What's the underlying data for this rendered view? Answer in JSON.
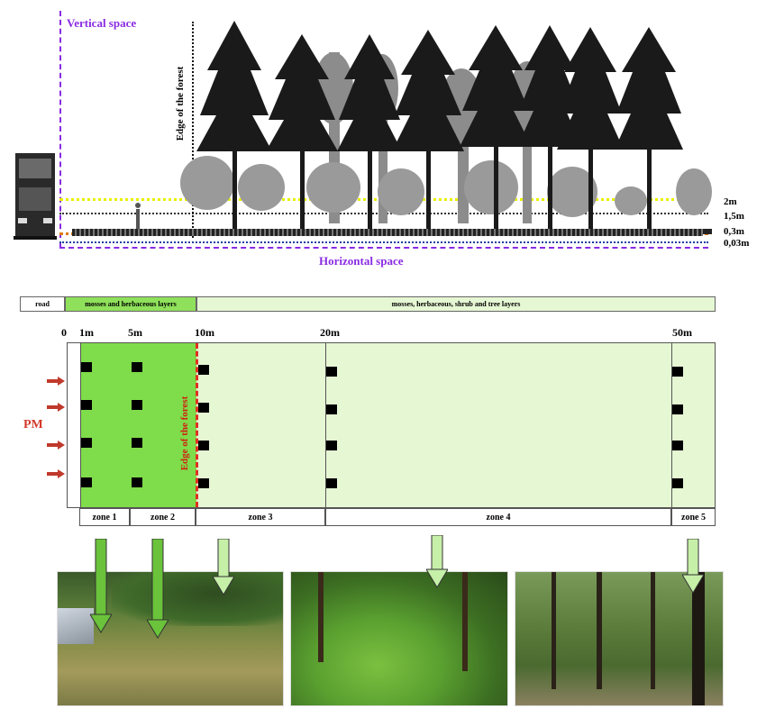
{
  "top": {
    "vertical_space_label": "Vertical space",
    "horizontal_space_label": "Horizontal space",
    "edge_label": "Edge of the forest",
    "heights": [
      "2m",
      "1,5m",
      "0,3m",
      "0,03m"
    ],
    "colors": {
      "axis": "#8a2be2",
      "h2m": "#e8f000",
      "h03m": "#e07a10",
      "h003m": "#1f3fa0"
    }
  },
  "bands": {
    "road": "road",
    "mosses_herb": "mosses and herbaceous layers",
    "all_layers": "mosses, herbaceous, shrub and tree layers"
  },
  "distances": [
    "0",
    "1m",
    "5m",
    "10m",
    "20m",
    "50m"
  ],
  "pm_label": "PM",
  "edge_label_rotated": "Edge of the forest",
  "zones": [
    "zone 1",
    "zone 2",
    "zone 3",
    "zone 4",
    "zone 5"
  ],
  "colors": {
    "zone_dark": "#7fdc4a",
    "zone_light": "#e6f7d4",
    "pm_arrow": "#c0392b",
    "edge_line": "#e03020"
  },
  "icons": {
    "sampler": "black-square-icon",
    "pm_arrow": "red-arrow-icon",
    "zone_arrow": "green-down-arrow-icon"
  }
}
